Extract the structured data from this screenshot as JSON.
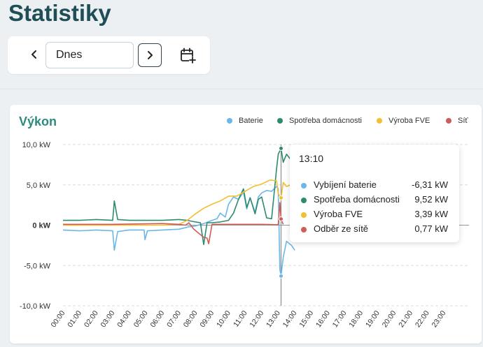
{
  "page": {
    "title": "Statistiky"
  },
  "date_nav": {
    "value": "Dnes"
  },
  "chart_card": {
    "title": "Výkon",
    "legend": [
      {
        "label": "Baterie",
        "color": "#6ab7ec"
      },
      {
        "label": "Spotřeba domácnosti",
        "color": "#2e8b6e"
      },
      {
        "label": "Výroba FVE",
        "color": "#f2bf2f"
      },
      {
        "label": "Síť",
        "color": "#cf5c56"
      }
    ],
    "tooltip": {
      "time": "13:10",
      "rows": [
        {
          "label": "Vybíjení baterie",
          "value": "-6,31 kW",
          "color": "#6ab7ec"
        },
        {
          "label": "Spotřeba domácnosti",
          "value": "9,52 kW",
          "color": "#2e8b6e"
        },
        {
          "label": "Výroba FVE",
          "value": "3,39 kW",
          "color": "#f2bf2f"
        },
        {
          "label": "Odběr ze sítě",
          "value": "0,77 kW",
          "color": "#cf5c56"
        }
      ]
    }
  },
  "chart_data": {
    "type": "line",
    "x_label_format": "HH:MM",
    "x_ticks": [
      "00:00",
      "01:00",
      "02:00",
      "03:00",
      "04:00",
      "05:00",
      "06:00",
      "07:00",
      "08:00",
      "09:00",
      "10:00",
      "11:00",
      "12:00",
      "13:00",
      "14:00",
      "15:00",
      "16:00",
      "17:00",
      "18:00",
      "19:00",
      "20:00",
      "21:00",
      "22:00",
      "23:00"
    ],
    "y_ticks": [
      {
        "value": 10,
        "label": "10,0 kW"
      },
      {
        "value": 5,
        "label": "5,0 kW"
      },
      {
        "value": 0,
        "label": "0 kW"
      },
      {
        "value": -5,
        "label": "-5,0 kW"
      },
      {
        "value": -10,
        "label": "-10,0 kW"
      }
    ],
    "ylim": [
      -10,
      10
    ],
    "xlim": [
      0,
      23
    ],
    "grid": true,
    "legend_position": "top-right",
    "cursor_time": 13.17,
    "series": [
      {
        "name": "Baterie",
        "color": "#6ab7ec",
        "points": [
          [
            0,
            -0.6
          ],
          [
            1,
            -0.7
          ],
          [
            2,
            -0.6
          ],
          [
            3,
            -0.7
          ],
          [
            3.1,
            -3.1
          ],
          [
            3.3,
            -0.8
          ],
          [
            4,
            -0.6
          ],
          [
            4.9,
            -0.6
          ],
          [
            4.95,
            -1.8
          ],
          [
            5.1,
            -0.7
          ],
          [
            6,
            -0.6
          ],
          [
            7,
            -0.5
          ],
          [
            7.6,
            -0.2
          ],
          [
            8,
            -0.1
          ],
          [
            8.5,
            0.2
          ],
          [
            9,
            0.6
          ],
          [
            9.3,
            0.8
          ],
          [
            9.5,
            1.5
          ],
          [
            9.8,
            1.0
          ],
          [
            10,
            2.6
          ],
          [
            10.3,
            3.5
          ],
          [
            10.6,
            3.2
          ],
          [
            10.9,
            4.1
          ],
          [
            11.1,
            2.0
          ],
          [
            11.3,
            3.4
          ],
          [
            11.6,
            1.6
          ],
          [
            11.8,
            3.5
          ],
          [
            12,
            4.0
          ],
          [
            12.3,
            4.3
          ],
          [
            12.6,
            4.2
          ],
          [
            12.9,
            4.8
          ],
          [
            13.0,
            4.5
          ],
          [
            13.1,
            -5.5
          ],
          [
            13.17,
            -6.31
          ],
          [
            13.3,
            -4.0
          ],
          [
            13.5,
            -2.0
          ],
          [
            13.8,
            -2.5
          ],
          [
            14,
            -3.1
          ]
        ]
      },
      {
        "name": "Spotřeba domácnosti",
        "color": "#2e8b6e",
        "points": [
          [
            0,
            0.6
          ],
          [
            1,
            0.6
          ],
          [
            2,
            0.7
          ],
          [
            3,
            0.6
          ],
          [
            3.1,
            3.0
          ],
          [
            3.3,
            0.7
          ],
          [
            4,
            0.6
          ],
          [
            5,
            0.6
          ],
          [
            6,
            0.6
          ],
          [
            7,
            0.7
          ],
          [
            7.5,
            0.6
          ],
          [
            8,
            0.4
          ],
          [
            8.3,
            0.3
          ],
          [
            8.5,
            -2.4
          ],
          [
            8.7,
            0.3
          ],
          [
            9,
            0.3
          ],
          [
            9.5,
            0.4
          ],
          [
            10,
            0.6
          ],
          [
            10.3,
            1.5
          ],
          [
            10.6,
            3.2
          ],
          [
            10.9,
            4.5
          ],
          [
            11.1,
            2.2
          ],
          [
            11.3,
            3.4
          ],
          [
            11.6,
            1.4
          ],
          [
            11.8,
            3.2
          ],
          [
            12,
            3.5
          ],
          [
            12.3,
            0.9
          ],
          [
            12.6,
            0.8
          ],
          [
            12.9,
            7.0
          ],
          [
            13.0,
            8.8
          ],
          [
            13.17,
            9.52
          ],
          [
            13.3,
            7.8
          ],
          [
            13.5,
            8.8
          ],
          [
            14,
            7.5
          ]
        ]
      },
      {
        "name": "Výroba FVE",
        "color": "#f2bf2f",
        "points": [
          [
            0,
            0
          ],
          [
            6,
            0
          ],
          [
            7,
            0.1
          ],
          [
            7.5,
            0.6
          ],
          [
            8,
            1.4
          ],
          [
            8.5,
            2.1
          ],
          [
            9,
            2.6
          ],
          [
            9.5,
            3.0
          ],
          [
            10,
            3.6
          ],
          [
            10.5,
            3.6
          ],
          [
            11,
            4.2
          ],
          [
            11.5,
            4.8
          ],
          [
            12,
            5.1
          ],
          [
            12.5,
            5.6
          ],
          [
            12.9,
            5.5
          ],
          [
            13.0,
            3.9
          ],
          [
            13.17,
            3.39
          ],
          [
            13.3,
            5.3
          ],
          [
            13.5,
            4.8
          ],
          [
            14,
            5.2
          ]
        ]
      },
      {
        "name": "Síť",
        "color": "#cf5c56",
        "points": [
          [
            0,
            0.1
          ],
          [
            3,
            0.1
          ],
          [
            6,
            0.2
          ],
          [
            7,
            0.1
          ],
          [
            7.4,
            0.0
          ],
          [
            7.6,
            0.3
          ],
          [
            7.9,
            -0.5
          ],
          [
            8.2,
            -1.0
          ],
          [
            8.5,
            -1.5
          ],
          [
            8.7,
            -1.6
          ],
          [
            8.8,
            -2.3
          ],
          [
            9,
            0.1
          ],
          [
            10,
            0.1
          ],
          [
            11,
            0.1
          ],
          [
            12,
            0.1
          ],
          [
            13.0,
            0.05
          ],
          [
            13.1,
            2.8
          ],
          [
            13.17,
            0.77
          ],
          [
            13.3,
            0.1
          ]
        ]
      }
    ]
  }
}
